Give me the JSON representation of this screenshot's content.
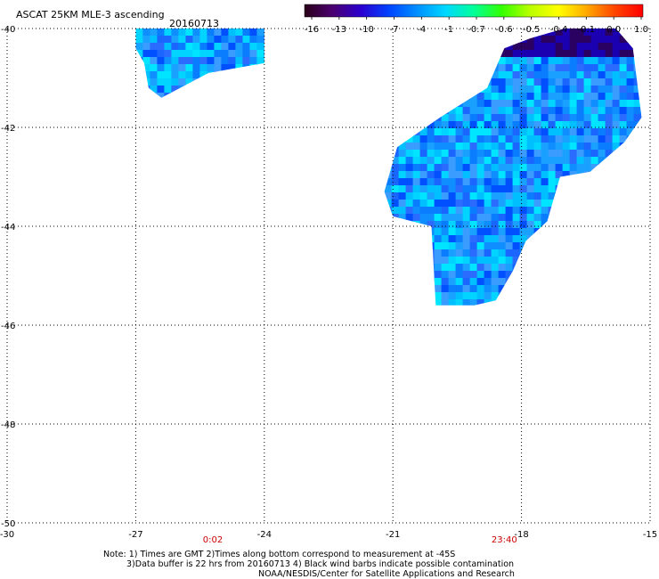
{
  "header": {
    "title": "ASCAT 25KM MLE-3 ascending",
    "date": "20160713"
  },
  "colorbar": {
    "labels": [
      "-16",
      "-13",
      "-10",
      "-7",
      "-4",
      "-1",
      "-0.7",
      "-0.6",
      "-0.5",
      "-0.4",
      "-0.1",
      "0.0",
      "1.0"
    ],
    "colors": [
      "#2a0018",
      "#4b0070",
      "#2a00d0",
      "#0044ff",
      "#0090ff",
      "#00d8ff",
      "#00ff99",
      "#33ff00",
      "#bbff00",
      "#ffff00",
      "#ffaa00",
      "#ff4400",
      "#ff0000"
    ]
  },
  "axes": {
    "lon_ticks": [
      "-30",
      "-27",
      "-24",
      "-21",
      "-18",
      "-15"
    ],
    "lat_ticks": [
      "-40",
      "-42",
      "-44",
      "-46",
      "-48",
      "-50"
    ],
    "lon_range": [
      -30,
      -15
    ],
    "lat_range": [
      -40,
      -50
    ]
  },
  "pass_times": [
    {
      "label": "0:02",
      "lon": -25.2
    },
    {
      "label": "23:40",
      "lon": -18.4
    }
  ],
  "swaths": [
    {
      "name": "swath-west",
      "polygon": [
        [
          -27.0,
          -40.0
        ],
        [
          -24.0,
          -40.0
        ],
        [
          -24.0,
          -40.7
        ],
        [
          -25.3,
          -40.9
        ],
        [
          -26.4,
          -41.4
        ],
        [
          -26.7,
          -41.2
        ],
        [
          -26.8,
          -40.7
        ],
        [
          -27.0,
          -40.4
        ]
      ]
    },
    {
      "name": "swath-east",
      "polygon": [
        [
          -17.0,
          -40.0
        ],
        [
          -15.8,
          -40.0
        ],
        [
          -15.4,
          -40.4
        ],
        [
          -15.2,
          -41.8
        ],
        [
          -15.6,
          -42.3
        ],
        [
          -16.4,
          -42.9
        ],
        [
          -17.1,
          -43.0
        ],
        [
          -17.4,
          -43.9
        ],
        [
          -17.9,
          -44.3
        ],
        [
          -18.2,
          -44.9
        ],
        [
          -18.6,
          -45.5
        ],
        [
          -19.1,
          -45.6
        ],
        [
          -20.0,
          -45.6
        ],
        [
          -20.1,
          -44.0
        ],
        [
          -21.0,
          -43.8
        ],
        [
          -21.2,
          -43.3
        ],
        [
          -20.9,
          -42.4
        ],
        [
          -19.9,
          -41.8
        ],
        [
          -18.8,
          -41.2
        ],
        [
          -18.4,
          -40.4
        ],
        [
          -17.8,
          -40.2
        ]
      ]
    }
  ],
  "notes": {
    "line1": "Note: 1) Times are GMT 2)Times along bottom correspond to measurement at -45S",
    "line2": "3)Data buffer is 22 hrs from 20160713 4) Black wind barbs indicate possible contamination",
    "line3": "NOAA/NESDIS/Center for Satellite Applications and Research"
  }
}
